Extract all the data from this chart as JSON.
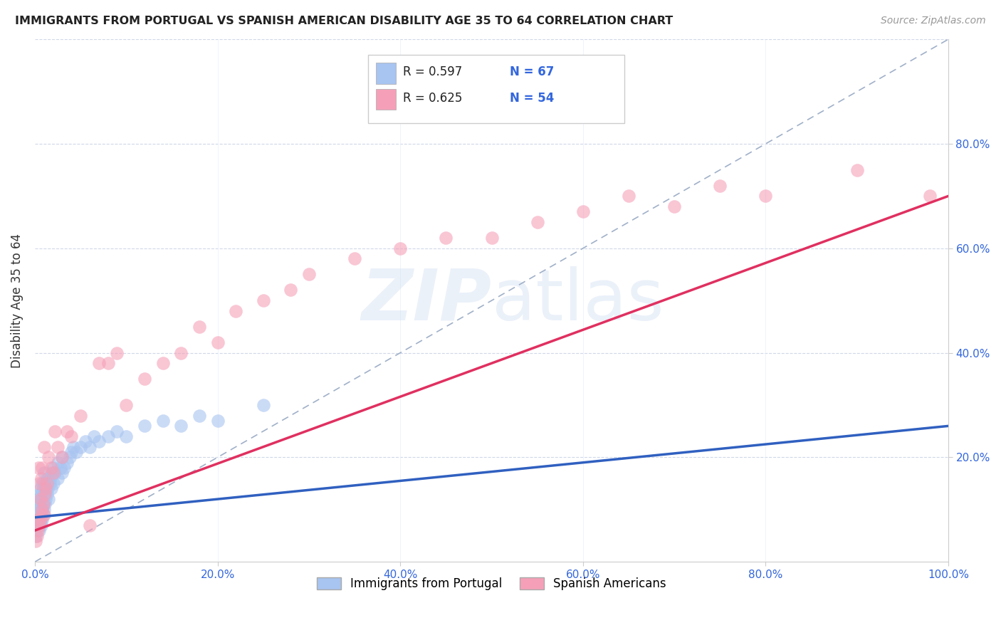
{
  "title": "IMMIGRANTS FROM PORTUGAL VS SPANISH AMERICAN DISABILITY AGE 35 TO 64 CORRELATION CHART",
  "source": "Source: ZipAtlas.com",
  "ylabel": "Disability Age 35 to 64",
  "xlim": [
    0.0,
    1.0
  ],
  "ylim": [
    0.0,
    1.0
  ],
  "background_color": "#ffffff",
  "blue_R": 0.597,
  "blue_N": 67,
  "pink_R": 0.625,
  "pink_N": 54,
  "blue_color": "#a8c4f0",
  "pink_color": "#f5a0b8",
  "blue_line_color": "#3060c0",
  "pink_line_color": "#e03060",
  "diagonal_color": "#a0b0c8",
  "legend_blue_label": "Immigrants from Portugal",
  "legend_pink_label": "Spanish Americans",
  "ytick_positions": [
    0.2,
    0.4,
    0.6,
    0.8
  ],
  "ytick_labels": [
    "20.0%",
    "40.0%",
    "60.0%",
    "80.0%"
  ],
  "xtick_positions": [
    0.0,
    0.2,
    0.4,
    0.6,
    0.8,
    1.0
  ],
  "xtick_labels": [
    "0.0%",
    "20.0%",
    "40.0%",
    "60.0%",
    "80.0%",
    "100.0%"
  ],
  "blue_scatter_x": [
    0.001,
    0.002,
    0.003,
    0.003,
    0.004,
    0.004,
    0.005,
    0.005,
    0.005,
    0.006,
    0.006,
    0.006,
    0.007,
    0.007,
    0.007,
    0.008,
    0.008,
    0.008,
    0.008,
    0.009,
    0.009,
    0.009,
    0.01,
    0.01,
    0.01,
    0.01,
    0.011,
    0.011,
    0.012,
    0.012,
    0.013,
    0.013,
    0.014,
    0.015,
    0.015,
    0.016,
    0.017,
    0.018,
    0.019,
    0.02,
    0.02,
    0.022,
    0.025,
    0.025,
    0.028,
    0.03,
    0.03,
    0.032,
    0.035,
    0.038,
    0.04,
    0.042,
    0.045,
    0.05,
    0.055,
    0.06,
    0.065,
    0.07,
    0.08,
    0.09,
    0.1,
    0.12,
    0.14,
    0.16,
    0.18,
    0.2,
    0.25
  ],
  "blue_scatter_y": [
    0.05,
    0.08,
    0.1,
    0.12,
    0.07,
    0.11,
    0.06,
    0.09,
    0.13,
    0.08,
    0.11,
    0.14,
    0.07,
    0.1,
    0.13,
    0.08,
    0.1,
    0.12,
    0.15,
    0.09,
    0.11,
    0.14,
    0.1,
    0.13,
    0.15,
    0.17,
    0.11,
    0.14,
    0.12,
    0.15,
    0.13,
    0.16,
    0.14,
    0.12,
    0.16,
    0.15,
    0.16,
    0.14,
    0.17,
    0.15,
    0.18,
    0.17,
    0.16,
    0.19,
    0.18,
    0.17,
    0.2,
    0.18,
    0.19,
    0.2,
    0.21,
    0.22,
    0.21,
    0.22,
    0.23,
    0.22,
    0.24,
    0.23,
    0.24,
    0.25,
    0.24,
    0.26,
    0.27,
    0.26,
    0.28,
    0.27,
    0.3
  ],
  "pink_scatter_x": [
    0.001,
    0.002,
    0.003,
    0.004,
    0.004,
    0.005,
    0.005,
    0.006,
    0.006,
    0.007,
    0.007,
    0.008,
    0.008,
    0.009,
    0.01,
    0.01,
    0.011,
    0.012,
    0.013,
    0.015,
    0.018,
    0.02,
    0.022,
    0.025,
    0.03,
    0.035,
    0.04,
    0.05,
    0.06,
    0.07,
    0.08,
    0.09,
    0.1,
    0.12,
    0.14,
    0.16,
    0.18,
    0.2,
    0.22,
    0.25,
    0.28,
    0.3,
    0.35,
    0.4,
    0.45,
    0.5,
    0.55,
    0.6,
    0.65,
    0.7,
    0.75,
    0.8,
    0.9,
    0.98
  ],
  "pink_scatter_y": [
    0.04,
    0.05,
    0.06,
    0.08,
    0.18,
    0.07,
    0.15,
    0.08,
    0.12,
    0.09,
    0.16,
    0.1,
    0.18,
    0.11,
    0.09,
    0.22,
    0.13,
    0.14,
    0.15,
    0.2,
    0.18,
    0.17,
    0.25,
    0.22,
    0.2,
    0.25,
    0.24,
    0.28,
    0.07,
    0.38,
    0.38,
    0.4,
    0.3,
    0.35,
    0.38,
    0.4,
    0.45,
    0.42,
    0.48,
    0.5,
    0.52,
    0.55,
    0.58,
    0.6,
    0.62,
    0.62,
    0.65,
    0.67,
    0.7,
    0.68,
    0.72,
    0.7,
    0.75,
    0.7
  ],
  "blue_line_x0": 0.0,
  "blue_line_y0": 0.085,
  "blue_line_x1": 1.0,
  "blue_line_y1": 0.26,
  "pink_line_x0": 0.0,
  "pink_line_y0": 0.06,
  "pink_line_x1": 1.0,
  "pink_line_y1": 0.7
}
